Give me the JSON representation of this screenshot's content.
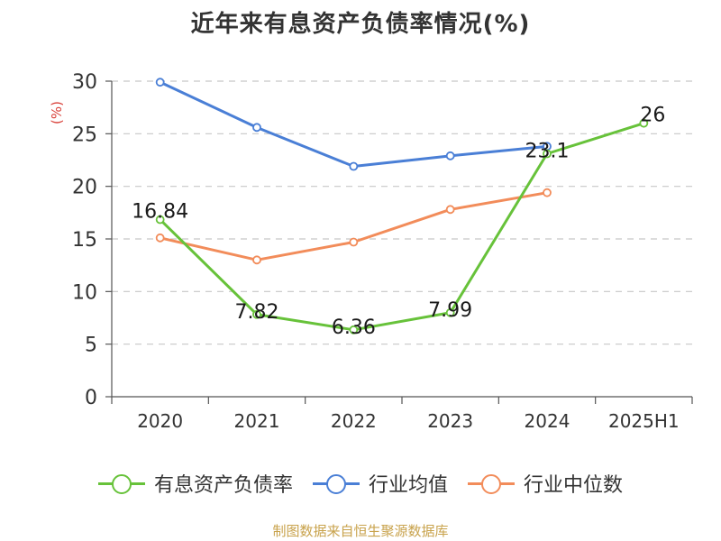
{
  "chart_data": {
    "type": "line",
    "title": "近年来有息资产负债率情况(%)",
    "ylabel": "(%)",
    "categories": [
      "2020",
      "2021",
      "2022",
      "2023",
      "2024",
      "2025H1"
    ],
    "ylim": [
      0,
      30
    ],
    "yticks": [
      0,
      5,
      10,
      15,
      20,
      25,
      30
    ],
    "grid": true,
    "legend_position": "bottom",
    "series": [
      {
        "name": "有息资产负债率",
        "color": "#67c23a",
        "values": [
          16.84,
          7.82,
          6.36,
          7.99,
          23.1,
          26
        ],
        "labels": [
          "16.84",
          "7.82",
          "6.36",
          "7.99",
          "23.1",
          "26"
        ]
      },
      {
        "name": "行业均值",
        "color": "#4a7fd6",
        "values": [
          29.9,
          25.6,
          21.9,
          22.9,
          23.8,
          null
        ]
      },
      {
        "name": "行业中位数",
        "color": "#f28c5a",
        "values": [
          15.1,
          13.0,
          14.7,
          17.8,
          19.4,
          null
        ]
      }
    ]
  },
  "source_note": "制图数据来自恒生聚源数据库"
}
